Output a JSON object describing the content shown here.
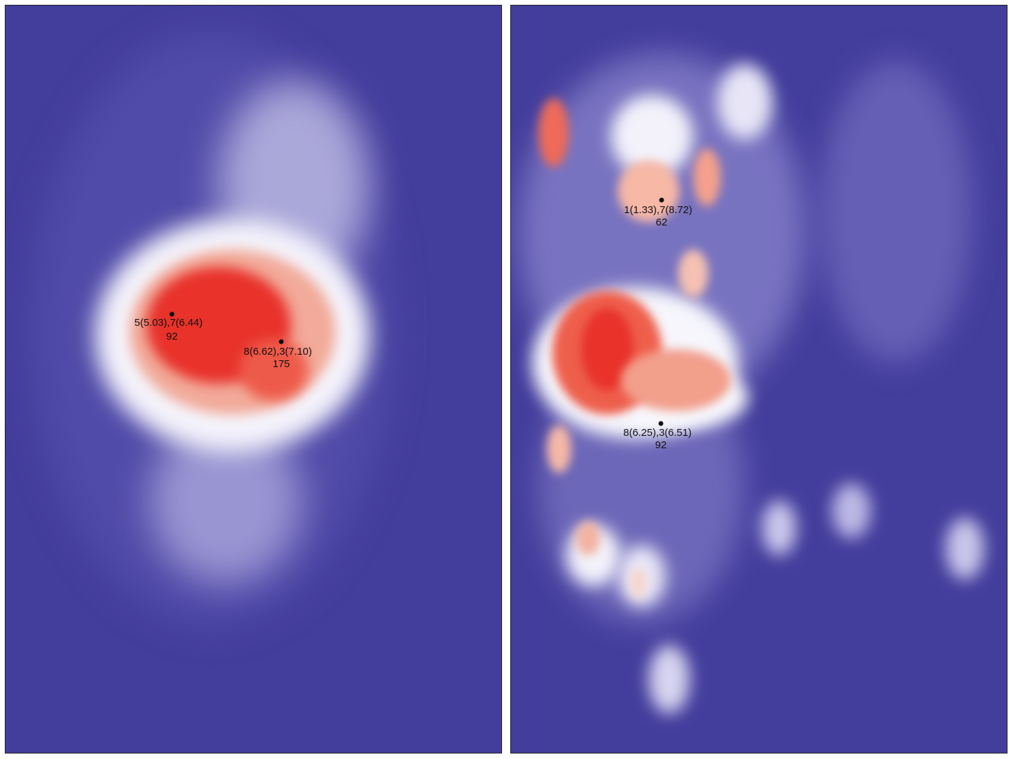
{
  "chart_data": [
    {
      "type": "heatmap",
      "colormap": {
        "low": "#433d9c",
        "mid": "#ffffff",
        "high": "#e8322a"
      },
      "peaks": [
        {
          "label": "5(5.03),7(6.44)",
          "value": "92"
        },
        {
          "label": "8(6.62),3(7.10)",
          "value": "175"
        }
      ]
    },
    {
      "type": "heatmap",
      "colormap": {
        "low": "#433d9c",
        "mid": "#ffffff",
        "high": "#e8322a"
      },
      "peaks": [
        {
          "label": "1(1.33),7(8.72)",
          "value": "62"
        },
        {
          "label": "8(6.25),3(6.51)",
          "value": "92"
        }
      ]
    }
  ]
}
